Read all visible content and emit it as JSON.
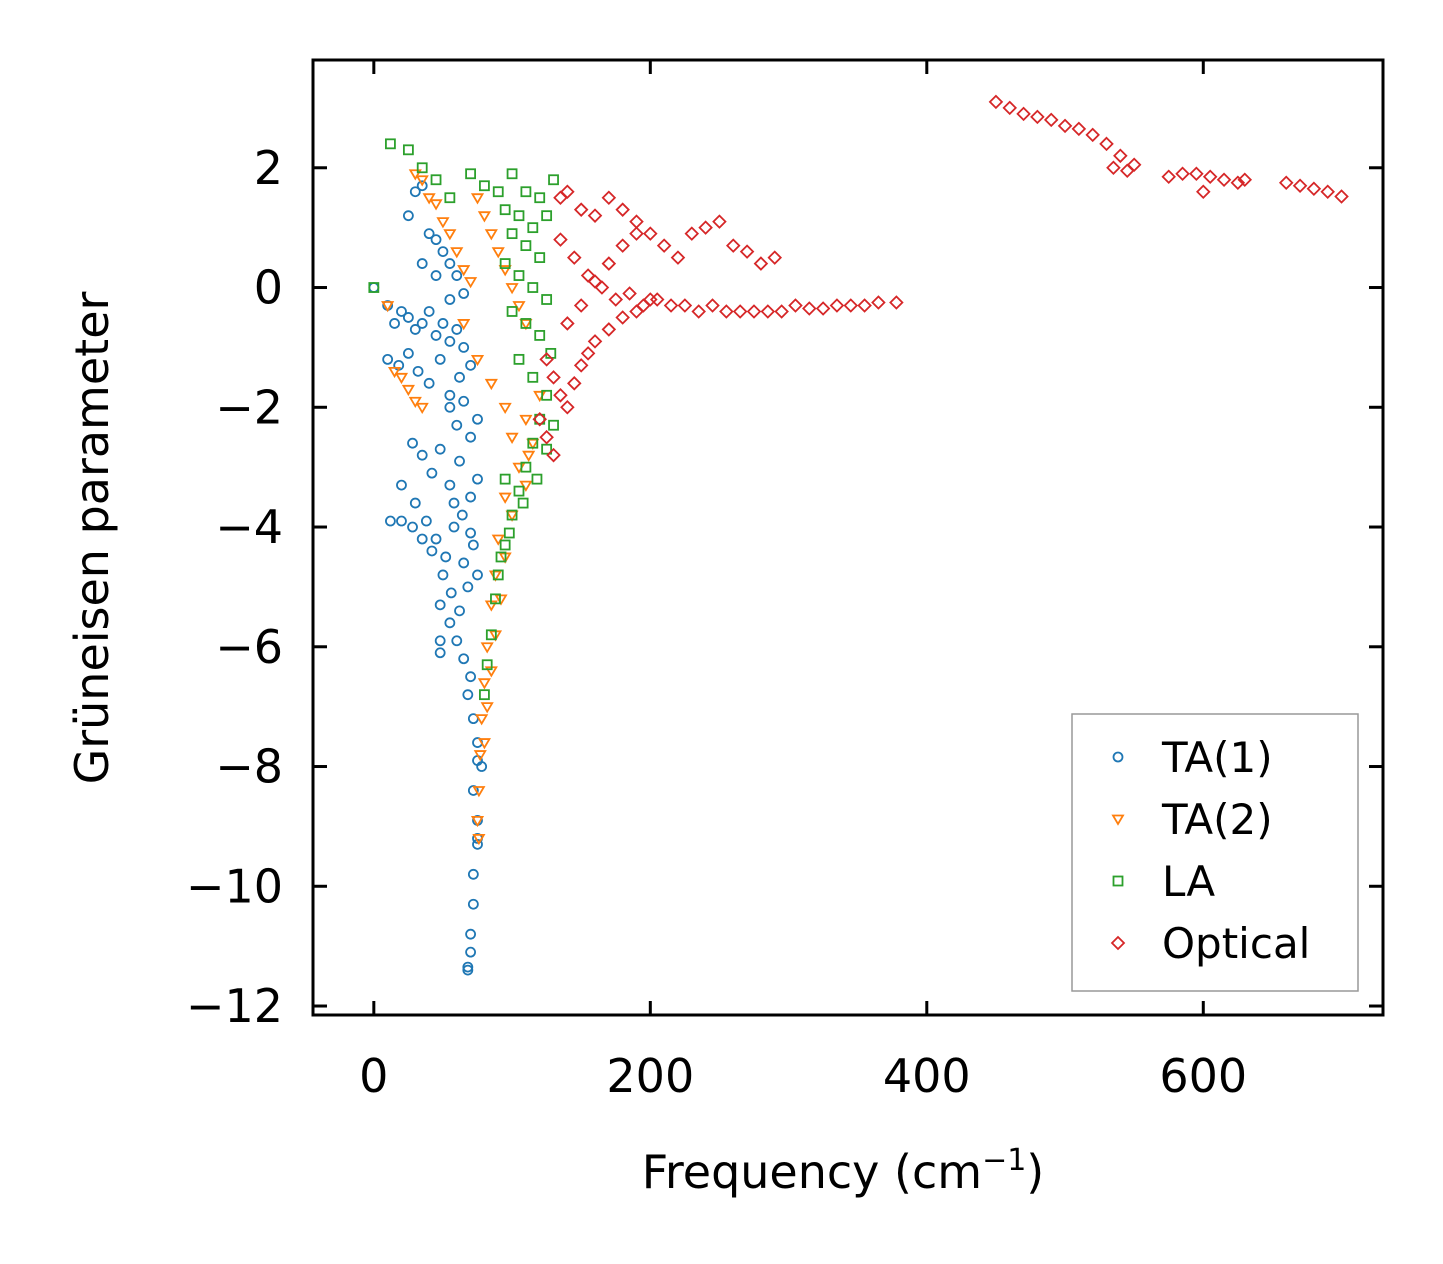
{
  "chart_data": {
    "type": "scatter",
    "title": "",
    "xlabel": "Frequency (cm",
    "xlabel_sup": "−1",
    "xlabel_close": ")",
    "ylabel": "Grüneisen parameter",
    "xlim": [
      -44,
      730
    ],
    "ylim": [
      -12.15,
      3.8
    ],
    "xticks": [
      0,
      200,
      400,
      600
    ],
    "xtick_labels": [
      "0",
      "200",
      "400",
      "600"
    ],
    "yticks": [
      2,
      0,
      -2,
      -4,
      -6,
      -8,
      -10,
      -12
    ],
    "ytick_labels": [
      "2",
      "0",
      "−2",
      "−4",
      "−6",
      "−8",
      "−10",
      "−12"
    ],
    "grid": false,
    "legend_position": "lower-right",
    "series": [
      {
        "name": "TA(1)",
        "marker": "circle",
        "color": "#1f77b4",
        "points": [
          [
            0,
            0
          ],
          [
            10,
            -0.3
          ],
          [
            15,
            -0.6
          ],
          [
            20,
            -0.4
          ],
          [
            25,
            -0.5
          ],
          [
            30,
            -0.7
          ],
          [
            35,
            -0.6
          ],
          [
            40,
            -0.4
          ],
          [
            45,
            -0.8
          ],
          [
            50,
            -0.6
          ],
          [
            55,
            -0.9
          ],
          [
            60,
            -0.7
          ],
          [
            65,
            -1.0
          ],
          [
            10,
            -1.2
          ],
          [
            18,
            -1.3
          ],
          [
            25,
            -1.1
          ],
          [
            32,
            -1.4
          ],
          [
            40,
            -1.6
          ],
          [
            48,
            -1.2
          ],
          [
            55,
            -1.8
          ],
          [
            62,
            -1.5
          ],
          [
            70,
            -1.3
          ],
          [
            30,
            1.6
          ],
          [
            35,
            1.7
          ],
          [
            25,
            1.2
          ],
          [
            40,
            0.9
          ],
          [
            45,
            0.8
          ],
          [
            50,
            0.6
          ],
          [
            55,
            0.4
          ],
          [
            60,
            0.2
          ],
          [
            65,
            -0.1
          ],
          [
            35,
            0.4
          ],
          [
            45,
            0.2
          ],
          [
            55,
            -0.2
          ],
          [
            28,
            -2.6
          ],
          [
            35,
            -2.8
          ],
          [
            42,
            -3.1
          ],
          [
            48,
            -2.7
          ],
          [
            55,
            -3.3
          ],
          [
            62,
            -2.9
          ],
          [
            70,
            -3.5
          ],
          [
            20,
            -3.3
          ],
          [
            30,
            -3.6
          ],
          [
            38,
            -3.9
          ],
          [
            45,
            -4.2
          ],
          [
            52,
            -4.5
          ],
          [
            58,
            -4.0
          ],
          [
            65,
            -4.6
          ],
          [
            72,
            -4.3
          ],
          [
            12,
            -3.9
          ],
          [
            20,
            -3.9
          ],
          [
            28,
            -4.0
          ],
          [
            35,
            -4.2
          ],
          [
            42,
            -4.4
          ],
          [
            50,
            -4.8
          ],
          [
            56,
            -5.1
          ],
          [
            62,
            -5.4
          ],
          [
            68,
            -5.0
          ],
          [
            75,
            -4.8
          ],
          [
            48,
            -5.3
          ],
          [
            55,
            -5.6
          ],
          [
            60,
            -5.9
          ],
          [
            65,
            -6.2
          ],
          [
            70,
            -6.5
          ],
          [
            48,
            -5.9
          ],
          [
            48,
            -6.1
          ],
          [
            68,
            -6.8
          ],
          [
            72,
            -7.2
          ],
          [
            75,
            -7.6
          ],
          [
            78,
            -8.0
          ],
          [
            75,
            -7.9
          ],
          [
            72,
            -8.4
          ],
          [
            75,
            -8.9
          ],
          [
            75,
            -9.2
          ],
          [
            75,
            -9.3
          ],
          [
            72,
            -9.8
          ],
          [
            72,
            -10.3
          ],
          [
            70,
            -10.8
          ],
          [
            70,
            -11.1
          ],
          [
            68,
            -11.35
          ],
          [
            68,
            -11.4
          ],
          [
            55,
            -2.0
          ],
          [
            60,
            -2.3
          ],
          [
            65,
            -1.9
          ],
          [
            70,
            -2.5
          ],
          [
            75,
            -2.2
          ],
          [
            58,
            -3.6
          ],
          [
            64,
            -3.8
          ],
          [
            70,
            -4.1
          ],
          [
            75,
            -3.2
          ]
        ]
      },
      {
        "name": "TA(2)",
        "marker": "triangle-down",
        "color": "#ff7f0e",
        "points": [
          [
            30,
            1.9
          ],
          [
            35,
            1.8
          ],
          [
            40,
            1.5
          ],
          [
            45,
            1.4
          ],
          [
            50,
            1.1
          ],
          [
            55,
            0.9
          ],
          [
            60,
            0.6
          ],
          [
            65,
            0.3
          ],
          [
            70,
            0.1
          ],
          [
            75,
            1.5
          ],
          [
            80,
            1.2
          ],
          [
            85,
            0.9
          ],
          [
            90,
            0.6
          ],
          [
            95,
            0.3
          ],
          [
            100,
            0.0
          ],
          [
            105,
            -0.3
          ],
          [
            110,
            -0.6
          ],
          [
            10,
            -0.3
          ],
          [
            15,
            -1.4
          ],
          [
            20,
            -1.5
          ],
          [
            25,
            -1.7
          ],
          [
            30,
            -1.9
          ],
          [
            35,
            -2.0
          ],
          [
            65,
            -0.6
          ],
          [
            75,
            -1.2
          ],
          [
            85,
            -1.6
          ],
          [
            95,
            -2.0
          ],
          [
            100,
            -2.5
          ],
          [
            105,
            -3.0
          ],
          [
            110,
            -3.3
          ],
          [
            112,
            -2.8
          ],
          [
            95,
            -3.5
          ],
          [
            90,
            -4.2
          ],
          [
            88,
            -4.8
          ],
          [
            85,
            -5.3
          ],
          [
            82,
            -6.0
          ],
          [
            80,
            -6.6
          ],
          [
            78,
            -7.2
          ],
          [
            77,
            -7.8
          ],
          [
            76,
            -8.4
          ],
          [
            75,
            -8.9
          ],
          [
            76,
            -9.2
          ],
          [
            100,
            -3.8
          ],
          [
            95,
            -4.5
          ],
          [
            92,
            -5.2
          ],
          [
            88,
            -5.8
          ],
          [
            85,
            -6.4
          ],
          [
            82,
            -7.0
          ],
          [
            80,
            -7.6
          ],
          [
            110,
            -2.2
          ],
          [
            115,
            -2.6
          ],
          [
            120,
            -1.8
          ]
        ]
      },
      {
        "name": "LA",
        "marker": "square",
        "color": "#2ca02c",
        "points": [
          [
            0,
            0
          ],
          [
            12,
            2.4
          ],
          [
            25,
            2.3
          ],
          [
            35,
            2.0
          ],
          [
            45,
            1.8
          ],
          [
            55,
            1.5
          ],
          [
            70,
            1.9
          ],
          [
            80,
            1.7
          ],
          [
            90,
            1.6
          ],
          [
            100,
            1.9
          ],
          [
            110,
            1.6
          ],
          [
            120,
            1.5
          ],
          [
            130,
            1.8
          ],
          [
            95,
            1.3
          ],
          [
            105,
            1.2
          ],
          [
            115,
            1.0
          ],
          [
            125,
            1.2
          ],
          [
            100,
            0.9
          ],
          [
            110,
            0.7
          ],
          [
            120,
            0.5
          ],
          [
            95,
            0.4
          ],
          [
            105,
            0.2
          ],
          [
            115,
            0.0
          ],
          [
            125,
            -0.2
          ],
          [
            100,
            -0.4
          ],
          [
            110,
            -0.6
          ],
          [
            120,
            -0.8
          ],
          [
            128,
            -1.1
          ],
          [
            105,
            -1.2
          ],
          [
            115,
            -1.5
          ],
          [
            125,
            -1.8
          ],
          [
            120,
            -2.2
          ],
          [
            115,
            -2.6
          ],
          [
            110,
            -3.0
          ],
          [
            105,
            -3.4
          ],
          [
            100,
            -3.8
          ],
          [
            95,
            -4.3
          ],
          [
            90,
            -4.8
          ],
          [
            88,
            -5.2
          ],
          [
            85,
            -5.8
          ],
          [
            82,
            -6.3
          ],
          [
            80,
            -6.8
          ],
          [
            130,
            -2.3
          ],
          [
            125,
            -2.7
          ],
          [
            118,
            -3.2
          ],
          [
            108,
            -3.6
          ],
          [
            98,
            -4.1
          ],
          [
            92,
            -4.5
          ],
          [
            95,
            -3.2
          ]
        ]
      },
      {
        "name": "Optical",
        "marker": "diamond",
        "color": "#d62728",
        "points": [
          [
            135,
            1.5
          ],
          [
            140,
            1.6
          ],
          [
            150,
            1.3
          ],
          [
            160,
            1.2
          ],
          [
            170,
            1.5
          ],
          [
            180,
            1.3
          ],
          [
            190,
            1.1
          ],
          [
            200,
            0.9
          ],
          [
            210,
            0.7
          ],
          [
            220,
            0.5
          ],
          [
            230,
            0.9
          ],
          [
            240,
            1.0
          ],
          [
            250,
            1.1
          ],
          [
            260,
            0.7
          ],
          [
            270,
            0.6
          ],
          [
            280,
            0.4
          ],
          [
            290,
            0.5
          ],
          [
            135,
            0.8
          ],
          [
            145,
            0.5
          ],
          [
            155,
            0.2
          ],
          [
            165,
            0.0
          ],
          [
            175,
            -0.2
          ],
          [
            185,
            -0.1
          ],
          [
            195,
            -0.3
          ],
          [
            205,
            -0.2
          ],
          [
            215,
            -0.3
          ],
          [
            225,
            -0.3
          ],
          [
            235,
            -0.4
          ],
          [
            245,
            -0.3
          ],
          [
            255,
            -0.4
          ],
          [
            265,
            -0.4
          ],
          [
            275,
            -0.4
          ],
          [
            285,
            -0.4
          ],
          [
            295,
            -0.4
          ],
          [
            305,
            -0.3
          ],
          [
            315,
            -0.35
          ],
          [
            325,
            -0.35
          ],
          [
            335,
            -0.3
          ],
          [
            345,
            -0.3
          ],
          [
            355,
            -0.3
          ],
          [
            365,
            -0.25
          ],
          [
            378,
            -0.25
          ],
          [
            125,
            -1.2
          ],
          [
            130,
            -1.5
          ],
          [
            135,
            -1.8
          ],
          [
            140,
            -2.0
          ],
          [
            145,
            -1.6
          ],
          [
            150,
            -1.3
          ],
          [
            155,
            -1.1
          ],
          [
            160,
            -0.9
          ],
          [
            170,
            -0.7
          ],
          [
            180,
            -0.5
          ],
          [
            190,
            -0.4
          ],
          [
            200,
            -0.2
          ],
          [
            120,
            -2.2
          ],
          [
            125,
            -2.5
          ],
          [
            130,
            -2.8
          ],
          [
            140,
            -0.6
          ],
          [
            150,
            -0.3
          ],
          [
            160,
            0.1
          ],
          [
            170,
            0.4
          ],
          [
            180,
            0.7
          ],
          [
            190,
            0.9
          ],
          [
            450,
            3.1
          ],
          [
            460,
            3.0
          ],
          [
            470,
            2.9
          ],
          [
            480,
            2.85
          ],
          [
            490,
            2.8
          ],
          [
            500,
            2.7
          ],
          [
            510,
            2.65
          ],
          [
            520,
            2.55
          ],
          [
            530,
            2.4
          ],
          [
            540,
            2.2
          ],
          [
            550,
            2.05
          ],
          [
            535,
            2.0
          ],
          [
            545,
            1.95
          ],
          [
            575,
            1.85
          ],
          [
            585,
            1.9
          ],
          [
            595,
            1.9
          ],
          [
            605,
            1.85
          ],
          [
            615,
            1.8
          ],
          [
            625,
            1.75
          ],
          [
            630,
            1.8
          ],
          [
            600,
            1.6
          ],
          [
            660,
            1.75
          ],
          [
            670,
            1.7
          ],
          [
            680,
            1.65
          ],
          [
            690,
            1.6
          ],
          [
            700,
            1.52
          ]
        ]
      }
    ]
  }
}
